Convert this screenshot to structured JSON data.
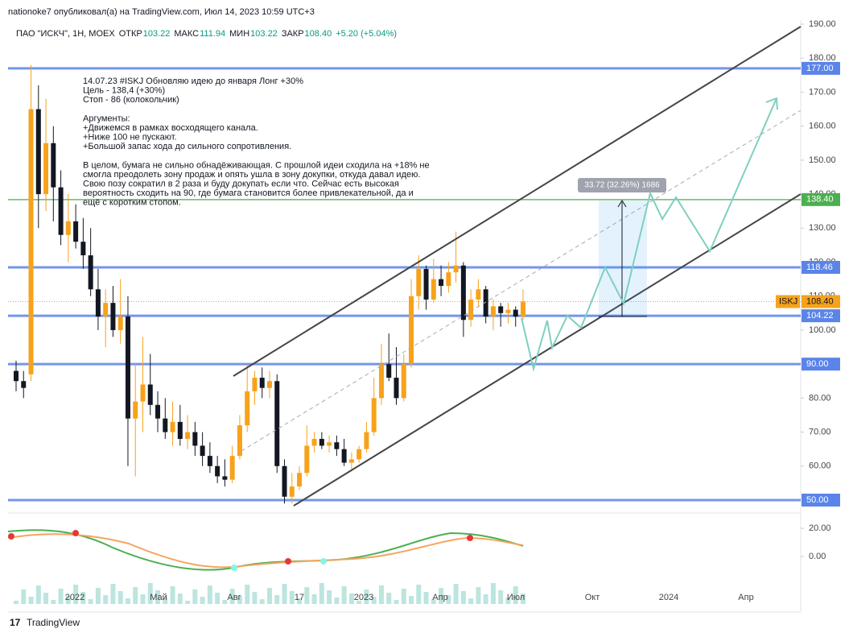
{
  "header": {
    "published": "nationoke7 опубликовал(а) на TradingView.com, Июл 14, 2023 10:59 UTC+3",
    "symbol": "ПАО \"ИСКЧ\", 1Н, MOEX",
    "open_label": "ОТКР",
    "open": "103.22",
    "high_label": "МАКС",
    "high": "111.94",
    "low_label": "МИН",
    "low": "103.22",
    "close_label": "ЗАКР",
    "close": "108.40",
    "change": "+5.20 (+5.04%)"
  },
  "annotation": [
    "14.07.23 #ISKJ Обновляю идею до января Лонг +30%",
    "Цель - 138,4  (+30%)",
    "Стоп - 86 (колокольчик)",
    "",
    "Аргументы:",
    "+Движемся в рамках восходящего канала.",
    "+Ниже 100 не пускают.",
    "+Большой запас хода до сильного сопротивления.",
    "",
    "В целом, бумага не сильно обнадёживающая. С прошлой идеи сходила на +18% не",
    "смогла преодолеть зону продаж и опять ушла в зону докупки, откуда давал идею.",
    "Свою позу сократил в 2 раза и буду докупать если что. Сейчас есть высокая",
    "вероятность сходить на 90, где бумага становится более привлекательной, да и",
    "ещё с коротким стопом."
  ],
  "chart": {
    "type": "candlestick",
    "ylim": [
      50,
      190
    ],
    "yticks": [
      {
        "value": 60,
        "label": "60.00"
      },
      {
        "value": 70,
        "label": "70.00"
      },
      {
        "value": 80,
        "label": "80.00"
      },
      {
        "value": 100,
        "label": "100.00"
      },
      {
        "value": 110,
        "label": "110.00"
      },
      {
        "value": 120,
        "label": "120.00"
      },
      {
        "value": 130,
        "label": "130.00"
      },
      {
        "value": 140,
        "label": "140.00"
      },
      {
        "value": 150,
        "label": "150.00"
      },
      {
        "value": 160,
        "label": "160.00"
      },
      {
        "value": 170,
        "label": "170.00"
      },
      {
        "value": 180,
        "label": "180.00"
      },
      {
        "value": 190,
        "label": "190.00"
      }
    ],
    "levels": [
      {
        "value": 177,
        "label": "177.00",
        "color": "#5b84e8"
      },
      {
        "value": 138.4,
        "label": "138.40",
        "color": "#4caf50"
      },
      {
        "value": 118.46,
        "label": "118.46",
        "color": "#5b84e8"
      },
      {
        "value": 104.22,
        "label": "104.22",
        "color": "#5b84e8"
      },
      {
        "value": 90,
        "label": "90.00",
        "color": "#5b84e8"
      },
      {
        "value": 50,
        "label": "50.00",
        "color": "#5b84e8"
      }
    ],
    "last": {
      "symbol": "ISKJ",
      "value": 108.4,
      "label": "108.40",
      "color": "#f7a21b"
    },
    "measure": "33.72 (32.26%) 1686",
    "up_color": "#f7a21b",
    "down_color": "#131722",
    "candles": [
      [
        88,
        91,
        82,
        85
      ],
      [
        85,
        88,
        80,
        83
      ],
      [
        87,
        178,
        85,
        165
      ],
      [
        165,
        172,
        130,
        140
      ],
      [
        140,
        168,
        135,
        155
      ],
      [
        155,
        160,
        132,
        142
      ],
      [
        142,
        147,
        125,
        128
      ],
      [
        128,
        140,
        120,
        132
      ],
      [
        132,
        137,
        124,
        126
      ],
      [
        126,
        133,
        118,
        122
      ],
      [
        122,
        130,
        110,
        112
      ],
      [
        112,
        118,
        100,
        104
      ],
      [
        104,
        112,
        95,
        108
      ],
      [
        108,
        113,
        98,
        100
      ],
      [
        100,
        115,
        96,
        104
      ],
      [
        104,
        110,
        60,
        74
      ],
      [
        74,
        90,
        57,
        79
      ],
      [
        79,
        98,
        70,
        84
      ],
      [
        84,
        93,
        75,
        78
      ],
      [
        78,
        82,
        70,
        74
      ],
      [
        74,
        80,
        68,
        70
      ],
      [
        70,
        79,
        66,
        73
      ],
      [
        73,
        78,
        66,
        68
      ],
      [
        68,
        75,
        65,
        70
      ],
      [
        70,
        73,
        63,
        66
      ],
      [
        66,
        70,
        60,
        63
      ],
      [
        63,
        67,
        58,
        60
      ],
      [
        60,
        63,
        55,
        57
      ],
      [
        57,
        62,
        54,
        56
      ],
      [
        56,
        66,
        55,
        63
      ],
      [
        63,
        75,
        62,
        72
      ],
      [
        72,
        90,
        70,
        82
      ],
      [
        82,
        88,
        78,
        86
      ],
      [
        86,
        89,
        80,
        83
      ],
      [
        83,
        88,
        80,
        85
      ],
      [
        85,
        87,
        58,
        60
      ],
      [
        60,
        62,
        49,
        51
      ],
      [
        51,
        58,
        49,
        54
      ],
      [
        54,
        60,
        53,
        58
      ],
      [
        58,
        72,
        57,
        66
      ],
      [
        66,
        70,
        64,
        68
      ],
      [
        68,
        70,
        65,
        66
      ],
      [
        66,
        69,
        64,
        67
      ],
      [
        67,
        69,
        63,
        65
      ],
      [
        65,
        68,
        60,
        61
      ],
      [
        61,
        64,
        59,
        62
      ],
      [
        62,
        66,
        61,
        65
      ],
      [
        65,
        73,
        64,
        70
      ],
      [
        70,
        86,
        69,
        80
      ],
      [
        80,
        96,
        78,
        90
      ],
      [
        90,
        99,
        85,
        86
      ],
      [
        86,
        95,
        78,
        80
      ],
      [
        80,
        93,
        79,
        90
      ],
      [
        90,
        115,
        89,
        110
      ],
      [
        110,
        122,
        106,
        118
      ],
      [
        118,
        119,
        106,
        109
      ],
      [
        109,
        121,
        108,
        115
      ],
      [
        115,
        119,
        110,
        113
      ],
      [
        113,
        120,
        111,
        117
      ],
      [
        117,
        129,
        114,
        119
      ],
      [
        119,
        120,
        98,
        103
      ],
      [
        103,
        112,
        101,
        109
      ],
      [
        109,
        115,
        107,
        112
      ],
      [
        112,
        113,
        102,
        104
      ],
      [
        104,
        109,
        100,
        107
      ],
      [
        107,
        108,
        101,
        105
      ],
      [
        105,
        108,
        102,
        106
      ],
      [
        106,
        107,
        101,
        104
      ],
      [
        104,
        112,
        103,
        108.4
      ]
    ],
    "xlabels": [
      "2022",
      "Май",
      "Авг",
      "17",
      "2023",
      "Апр",
      "Июл",
      "Окт",
      "2024",
      "Апр"
    ],
    "ind_ticks": [
      {
        "value": 20,
        "label": "20.00"
      },
      {
        "value": 0,
        "label": "0.00"
      }
    ]
  },
  "footer": "TradingView"
}
